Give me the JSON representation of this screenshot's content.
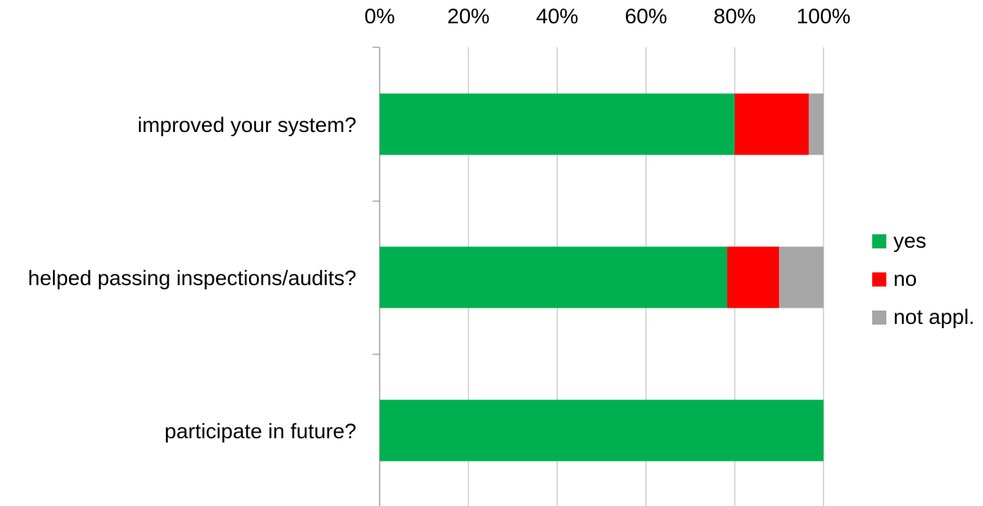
{
  "chart_data": {
    "type": "bar",
    "orientation": "horizontal",
    "stacked": "percent",
    "title": "",
    "xlabel": "",
    "ylabel": "",
    "categories": [
      "improved your system?",
      "helped passing inspections/audits?",
      "participate in future?"
    ],
    "series": [
      {
        "name": "yes",
        "values": [
          80,
          78.3,
          100
        ],
        "color": "#00B050"
      },
      {
        "name": "no",
        "values": [
          16.7,
          11.7,
          0
        ],
        "color": "#FF0000"
      },
      {
        "name": "not appl.",
        "values": [
          3.3,
          10,
          0
        ],
        "color": "#A6A6A6"
      }
    ],
    "xlim": [
      0,
      100
    ],
    "xticks": [
      "0%",
      "20%",
      "40%",
      "60%",
      "80%",
      "100%"
    ],
    "x_axis_position": "top",
    "grid": true,
    "legend_position": "right"
  }
}
